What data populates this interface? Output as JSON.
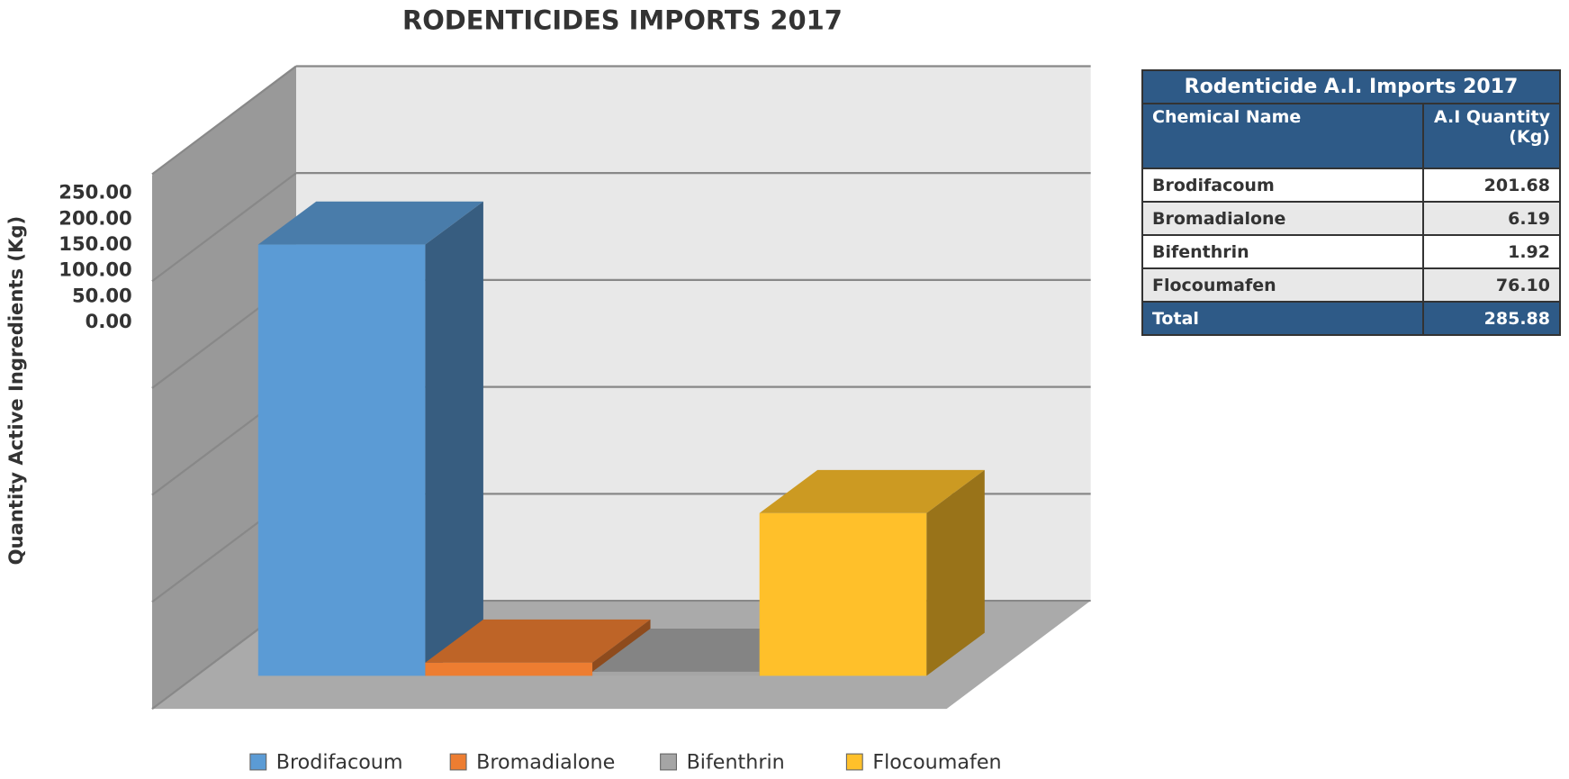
{
  "chart_data": {
    "type": "bar",
    "title": "RODENTICIDES IMPORTS 2017",
    "y_label": "Quantity Active Ingredients (Kg)",
    "categories": [
      "Brodifacoum",
      "Bromadialone",
      "Bifenthrin",
      "Flocoumafen"
    ],
    "values": [
      201.68,
      6.19,
      1.92,
      76.1
    ],
    "colors": [
      "#5b9bd5",
      "#ed7d31",
      "#a5a5a5",
      "#ffc02a"
    ],
    "ylim": [
      0,
      250
    ],
    "yticks": [
      {
        "value": 0,
        "label": "0.00"
      },
      {
        "value": 50,
        "label": "50.00"
      },
      {
        "value": 100,
        "label": "100.00"
      },
      {
        "value": 150,
        "label": "150.00"
      },
      {
        "value": 200,
        "label": "200.00"
      },
      {
        "value": 250,
        "label": "250.00"
      }
    ],
    "grid": true,
    "legend": "bottom"
  },
  "table": {
    "title": "Rodenticide A.I. Imports 2017",
    "header": [
      "Chemical Name",
      "A.I Quantity (Kg)"
    ],
    "rows": [
      [
        "Brodifacoum",
        "201.68"
      ],
      [
        "Bromadialone",
        "6.19"
      ],
      [
        "Bifenthrin",
        "1.92"
      ],
      [
        "Flocoumafen",
        "76.10"
      ]
    ],
    "footer": [
      "Total",
      "285.88"
    ]
  }
}
